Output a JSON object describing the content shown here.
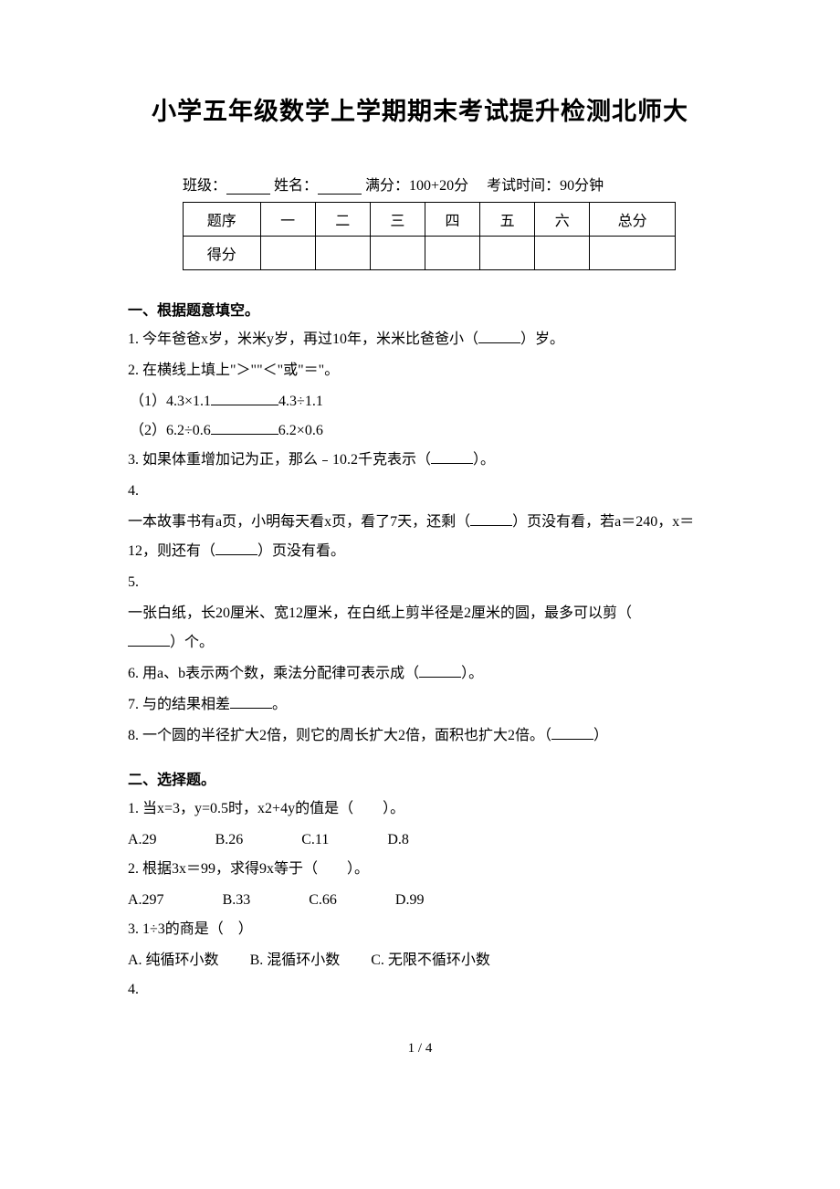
{
  "title": "小学五年级数学上学期期末考试提升检测北师大",
  "meta": {
    "class_label": "班级：",
    "name_label": "姓名：",
    "full_score_label": "满分：",
    "full_score_value": "100+20分",
    "exam_time_label": "考试时间：",
    "exam_time_value": "90分钟"
  },
  "score_table": {
    "row_labels": [
      "题序",
      "得分"
    ],
    "columns": [
      "一",
      "二",
      "三",
      "四",
      "五",
      "六",
      "总分"
    ]
  },
  "section1": {
    "heading": "一、根据题意填空。",
    "q1": "1. 今年爸爸x岁，米米y岁，再过10年，米米比爸爸小（",
    "q1_end": "）岁。",
    "q2": "2. 在横线上填上\"＞\"\"＜\"或\"＝\"。",
    "q2_1_a": "（1）4.3×1.1",
    "q2_1_b": "4.3÷1.1",
    "q2_2_a": "（2）6.2÷0.6",
    "q2_2_b": "6.2×0.6",
    "q3": "3. 如果体重增加记为正，那么﹣10.2千克表示（",
    "q3_end": "）。",
    "q4_num": "4.",
    "q4_a": "一本故事书有a页，小明每天看x页，看了7天，还剩（",
    "q4_b": "）页没有看，若a＝240，x＝12，则还有（",
    "q4_c": "）页没有看。",
    "q5_num": "5.",
    "q5_a": "一张白纸，长20厘米、宽12厘米，在白纸上剪半径是2厘米的圆，最多可以剪（",
    "q5_b": "）个。",
    "q6": "6. 用a、b表示两个数，乘法分配律可表示成（",
    "q6_end": "）。",
    "q7": "7. 与的结果相差",
    "q7_end": "。",
    "q8": "8. 一个圆的半径扩大2倍，则它的周长扩大2倍，面积也扩大2倍。（",
    "q8_end": "）"
  },
  "section2": {
    "heading": "二、选择题。",
    "q1": "1. 当x=3，y=0.5时，x2+4y的值是（　　）。",
    "q1_opts": {
      "a": "A.29",
      "b": "B.26",
      "c": "C.11",
      "d": "D.8"
    },
    "q2": "2. 根据3x＝99，求得9x等于（　　）。",
    "q2_opts": {
      "a": "A.297",
      "b": "B.33",
      "c": "C.66",
      "d": "D.99"
    },
    "q3": "3. 1÷3的商是（　）",
    "q3_opts": {
      "a": "A. 纯循环小数",
      "b": "B. 混循环小数",
      "c": "C. 无限不循环小数"
    },
    "q4_num": "4."
  },
  "page_num": "1 / 4"
}
